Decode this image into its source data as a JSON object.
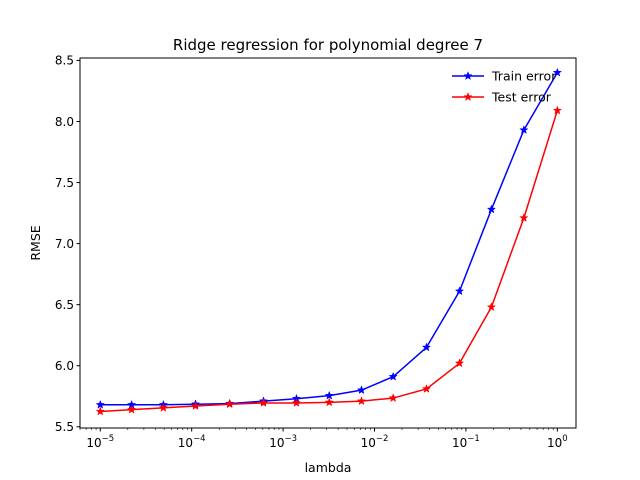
{
  "chart_data": {
    "type": "line",
    "title": "Ridge regression for polynomial degree 7",
    "xlabel": "lambda",
    "ylabel": "RMSE",
    "xscale": "log",
    "xlim": [
      6e-06,
      1.6
    ],
    "ylim": [
      5.49,
      8.52
    ],
    "grid": false,
    "legend_position": "top-right",
    "x_ticks": [
      {
        "value": 1e-05,
        "base": "10",
        "exp": "−5"
      },
      {
        "value": 0.0001,
        "base": "10",
        "exp": "−4"
      },
      {
        "value": 0.001,
        "base": "10",
        "exp": "−3"
      },
      {
        "value": 0.01,
        "base": "10",
        "exp": "−2"
      },
      {
        "value": 0.1,
        "base": "10",
        "exp": "−1"
      },
      {
        "value": 1,
        "base": "10",
        "exp": "0"
      }
    ],
    "y_ticks": [
      {
        "value": 5.5,
        "label": "5.5"
      },
      {
        "value": 6.0,
        "label": "6.0"
      },
      {
        "value": 6.5,
        "label": "6.5"
      },
      {
        "value": 7.0,
        "label": "7.0"
      },
      {
        "value": 7.5,
        "label": "7.5"
      },
      {
        "value": 8.0,
        "label": "8.0"
      },
      {
        "value": 8.5,
        "label": "8.5"
      }
    ],
    "x": [
      1e-05,
      2.2e-05,
      4.9e-05,
      0.00011,
      0.00026,
      0.00061,
      0.0014,
      0.0032,
      0.0072,
      0.016,
      0.037,
      0.085,
      0.19,
      0.43,
      1.0
    ],
    "series": [
      {
        "name": "Train error",
        "color": "#0000ff",
        "marker": "star",
        "values": [
          5.68,
          5.68,
          5.68,
          5.685,
          5.69,
          5.71,
          5.73,
          5.755,
          5.8,
          5.91,
          6.15,
          6.61,
          7.28,
          7.93,
          8.4
        ]
      },
      {
        "name": "Test error",
        "color": "#ff0000",
        "marker": "star",
        "values": [
          5.625,
          5.64,
          5.655,
          5.67,
          5.685,
          5.695,
          5.695,
          5.7,
          5.71,
          5.735,
          5.81,
          6.02,
          6.48,
          7.21,
          8.09
        ]
      }
    ]
  }
}
